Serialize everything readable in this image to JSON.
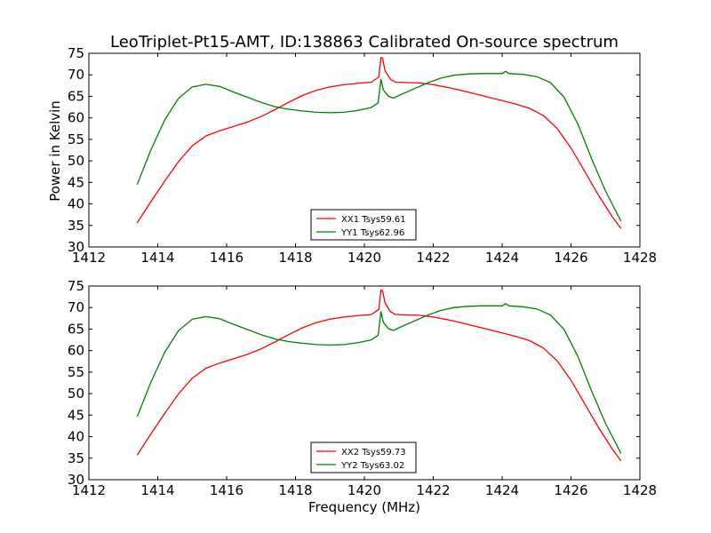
{
  "title": "LeoTriplet-Pt15-AMT, ID:138863 Calibrated On-source spectrum",
  "ylabel": "Power in Kelvin",
  "xlabel": "Frequency (MHz)",
  "chart_data": [
    {
      "type": "line",
      "title": "LeoTriplet-Pt15-AMT, ID:138863 Calibrated On-source spectrum",
      "xlabel": "",
      "ylabel": "Power in Kelvin",
      "xlim": [
        1412,
        1428
      ],
      "ylim": [
        30,
        75
      ],
      "xticks": [
        "1412",
        "1414",
        "1416",
        "1418",
        "1420",
        "1422",
        "1424",
        "1426",
        "1428"
      ],
      "yticks": [
        "30",
        "35",
        "40",
        "45",
        "50",
        "55",
        "60",
        "65",
        "70",
        "75"
      ],
      "grid": false,
      "legend": "bottom-center",
      "series": [
        {
          "name": "XX1 Tsys59.61",
          "color": "#ff0000",
          "x": [
            1413.4,
            1413.8,
            1414.2,
            1414.6,
            1415.0,
            1415.4,
            1415.8,
            1416.2,
            1416.6,
            1417.0,
            1417.4,
            1417.8,
            1418.2,
            1418.6,
            1419.0,
            1419.4,
            1419.8,
            1420.2,
            1420.42,
            1420.48,
            1420.53,
            1420.6,
            1420.75,
            1420.9,
            1421.2,
            1421.6,
            1422.0,
            1422.4,
            1422.8,
            1423.2,
            1423.6,
            1424.0,
            1424.4,
            1424.8,
            1425.2,
            1425.6,
            1426.0,
            1426.4,
            1426.8,
            1427.2,
            1427.45
          ],
          "y": [
            35.6,
            40.5,
            45.3,
            49.8,
            53.5,
            55.8,
            57.0,
            58.0,
            59.0,
            60.3,
            61.9,
            63.6,
            65.2,
            66.4,
            67.2,
            67.7,
            68.0,
            68.3,
            69.5,
            74.0,
            73.8,
            71.0,
            69.0,
            68.3,
            68.2,
            68.1,
            67.7,
            67.1,
            66.4,
            65.6,
            64.8,
            64.0,
            63.2,
            62.2,
            60.5,
            57.5,
            53.0,
            47.5,
            42.0,
            37.0,
            34.3
          ]
        },
        {
          "name": "YY1 Tsys62.96",
          "color": "#008000",
          "x": [
            1413.4,
            1413.8,
            1414.2,
            1414.6,
            1415.0,
            1415.4,
            1415.8,
            1416.2,
            1416.6,
            1417.0,
            1417.4,
            1417.8,
            1418.2,
            1418.6,
            1419.0,
            1419.4,
            1419.8,
            1420.2,
            1420.4,
            1420.48,
            1420.55,
            1420.7,
            1420.85,
            1421.0,
            1421.4,
            1421.8,
            1422.2,
            1422.6,
            1423.0,
            1423.4,
            1423.8,
            1424.0,
            1424.1,
            1424.2,
            1424.6,
            1425.0,
            1425.4,
            1425.8,
            1426.2,
            1426.6,
            1427.0,
            1427.45
          ],
          "y": [
            44.5,
            52.5,
            59.5,
            64.5,
            67.2,
            67.8,
            67.3,
            66.0,
            64.8,
            63.6,
            62.6,
            62.0,
            61.6,
            61.3,
            61.2,
            61.3,
            61.7,
            62.4,
            63.5,
            69.0,
            66.5,
            65.0,
            64.6,
            65.2,
            66.6,
            68.0,
            69.2,
            69.9,
            70.2,
            70.3,
            70.3,
            70.3,
            70.8,
            70.3,
            70.1,
            69.6,
            68.2,
            64.8,
            58.5,
            50.5,
            43.0,
            36.0
          ]
        }
      ]
    },
    {
      "type": "line",
      "title": "",
      "xlabel": "Frequency (MHz)",
      "ylabel": "",
      "xlim": [
        1412,
        1428
      ],
      "ylim": [
        30,
        75
      ],
      "xticks": [
        "1412",
        "1414",
        "1416",
        "1418",
        "1420",
        "1422",
        "1424",
        "1426",
        "1428"
      ],
      "yticks": [
        "30",
        "35",
        "40",
        "45",
        "50",
        "55",
        "60",
        "65",
        "70",
        "75"
      ],
      "grid": false,
      "legend": "bottom-center",
      "series": [
        {
          "name": "XX2 Tsys59.73",
          "color": "#ff0000",
          "x": [
            1413.4,
            1413.8,
            1414.2,
            1414.6,
            1415.0,
            1415.4,
            1415.8,
            1416.2,
            1416.6,
            1417.0,
            1417.4,
            1417.8,
            1418.2,
            1418.6,
            1419.0,
            1419.4,
            1419.8,
            1420.2,
            1420.42,
            1420.48,
            1420.53,
            1420.6,
            1420.75,
            1420.9,
            1421.2,
            1421.6,
            1422.0,
            1422.4,
            1422.8,
            1423.2,
            1423.6,
            1424.0,
            1424.4,
            1424.8,
            1425.2,
            1425.6,
            1426.0,
            1426.4,
            1426.8,
            1427.2,
            1427.45
          ],
          "y": [
            35.7,
            40.6,
            45.4,
            49.9,
            53.6,
            55.9,
            57.1,
            58.1,
            59.1,
            60.4,
            62.0,
            63.7,
            65.3,
            66.5,
            67.3,
            67.8,
            68.1,
            68.4,
            69.6,
            74.1,
            73.9,
            71.1,
            69.1,
            68.4,
            68.3,
            68.2,
            67.8,
            67.2,
            66.5,
            65.7,
            64.9,
            64.1,
            63.3,
            62.3,
            60.6,
            57.6,
            53.1,
            47.6,
            42.1,
            37.1,
            34.4
          ]
        },
        {
          "name": "YY2 Tsys63.02",
          "color": "#008000",
          "x": [
            1413.4,
            1413.8,
            1414.2,
            1414.6,
            1415.0,
            1415.4,
            1415.8,
            1416.2,
            1416.6,
            1417.0,
            1417.4,
            1417.8,
            1418.2,
            1418.6,
            1419.0,
            1419.4,
            1419.8,
            1420.2,
            1420.4,
            1420.48,
            1420.55,
            1420.7,
            1420.85,
            1421.0,
            1421.4,
            1421.8,
            1422.2,
            1422.6,
            1423.0,
            1423.4,
            1423.8,
            1424.0,
            1424.1,
            1424.2,
            1424.6,
            1425.0,
            1425.4,
            1425.8,
            1426.2,
            1426.6,
            1427.0,
            1427.45
          ],
          "y": [
            44.6,
            52.6,
            59.6,
            64.6,
            67.3,
            67.9,
            67.4,
            66.1,
            64.9,
            63.7,
            62.7,
            62.1,
            61.7,
            61.4,
            61.3,
            61.4,
            61.8,
            62.5,
            63.6,
            69.1,
            66.6,
            65.1,
            64.7,
            65.3,
            66.7,
            68.1,
            69.3,
            70.0,
            70.3,
            70.4,
            70.4,
            70.4,
            70.9,
            70.4,
            70.2,
            69.7,
            68.3,
            64.9,
            58.6,
            50.6,
            43.1,
            36.1
          ]
        }
      ]
    }
  ]
}
